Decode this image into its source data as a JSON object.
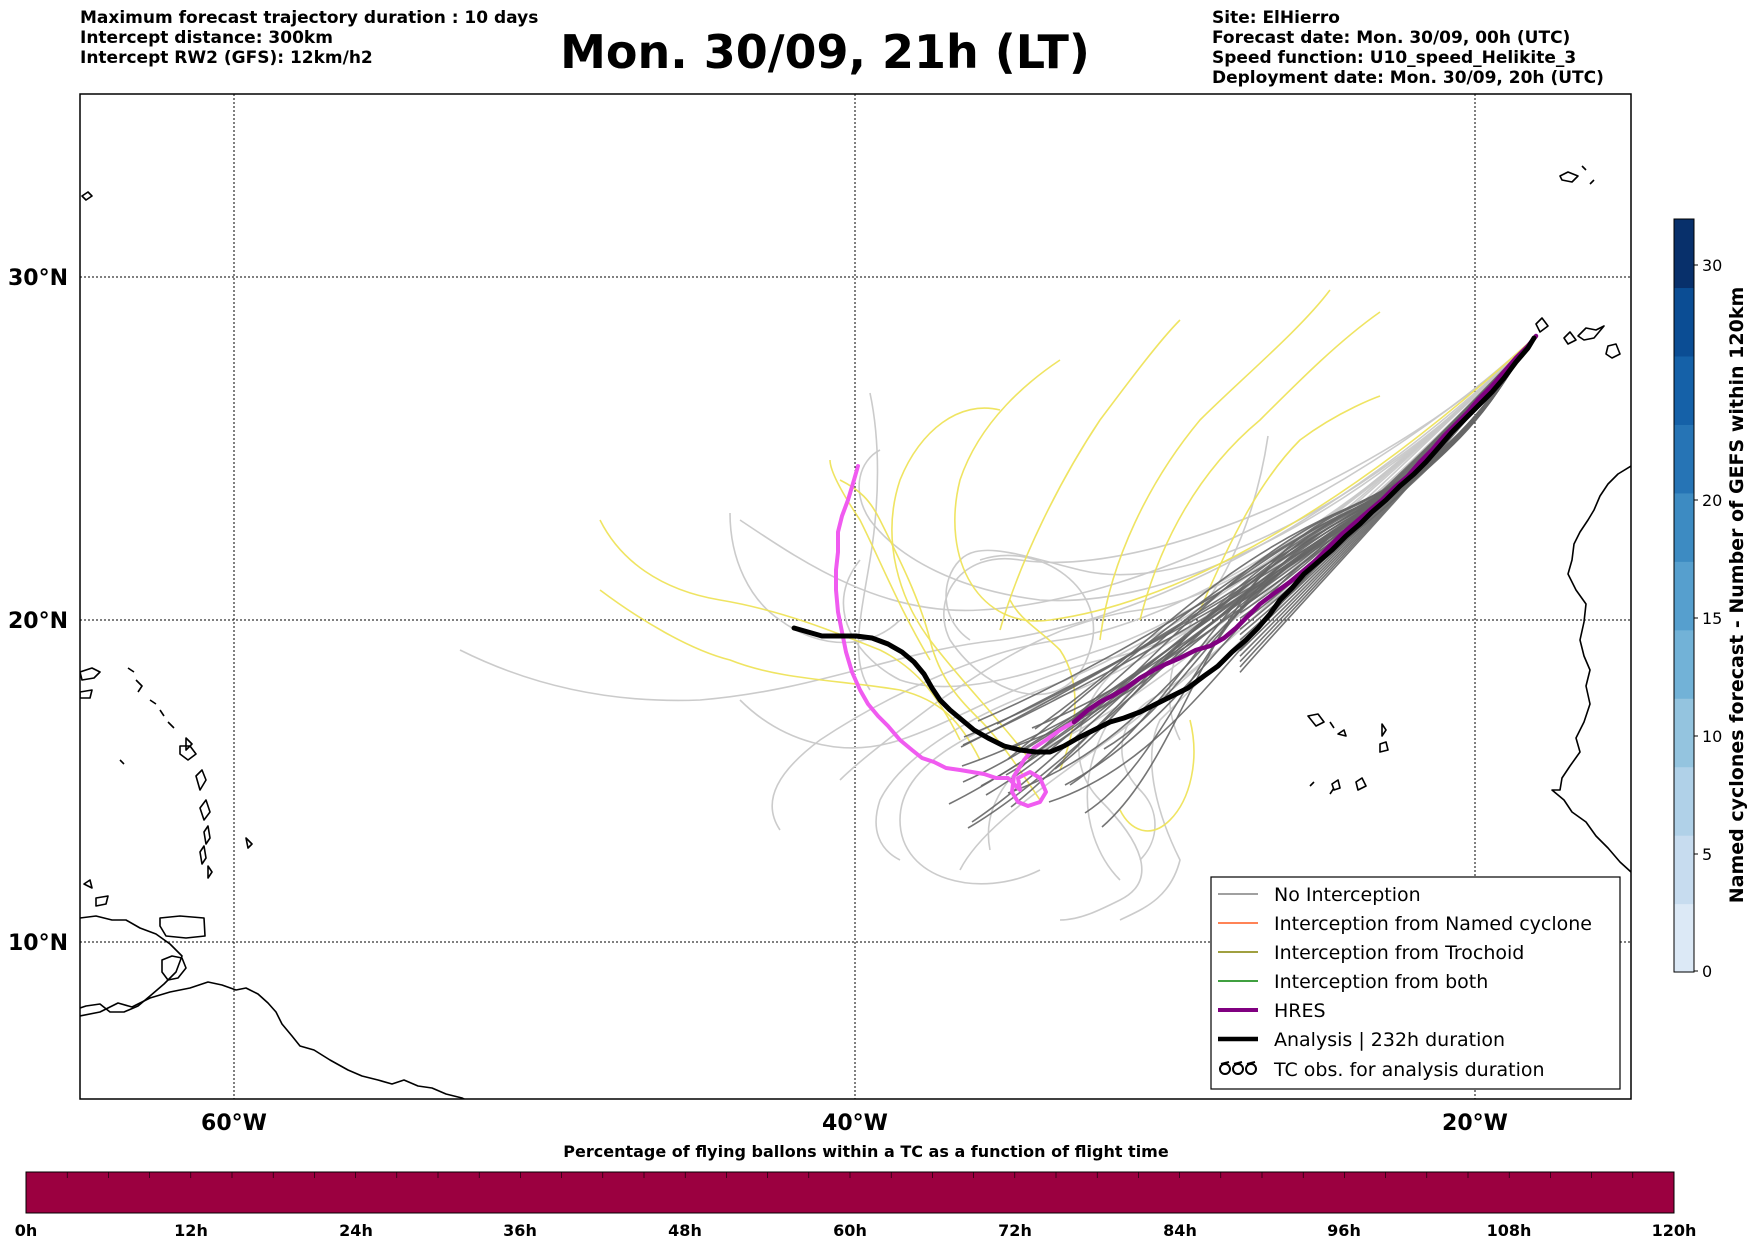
{
  "header": {
    "left_lines": [
      "Maximum forecast trajectory duration : 10 days",
      "Intercept distance: 300km",
      "Intercept RW2 (GFS):  12km/h2"
    ],
    "title": "Mon. 30/09, 21h (LT)",
    "right_lines": [
      "Site: ElHierro",
      "Forecast date: Mon. 30/09, 00h (UTC)",
      "Speed function: U10_speed_Helikite_3",
      "Deployment date: Mon. 30/09, 20h (UTC)"
    ]
  },
  "map": {
    "lat_labels": [
      "30°N",
      "20°N",
      "10°N"
    ],
    "lon_labels": [
      "60°W",
      "40°W",
      "20°W"
    ],
    "lon_range": [
      -65,
      -15
    ],
    "lat_range": [
      4.6,
      34
    ],
    "gridlines": true
  },
  "legend": {
    "placement": "lower-right",
    "items": [
      {
        "label": "No Interception",
        "color": "#808080",
        "style": "line"
      },
      {
        "label": "Interception from Named cyclone",
        "color": "#ff5a1f",
        "style": "line"
      },
      {
        "label": "Interception from Trochoid",
        "color": "#808000",
        "style": "line"
      },
      {
        "label": "Interception from both",
        "color": "#008000",
        "style": "line"
      },
      {
        "label": "HRES",
        "color": "#800080",
        "style": "thick-line"
      },
      {
        "label": "Analysis | 232h duration",
        "color": "#000000",
        "style": "thick-line"
      },
      {
        "label": "TC obs. for analysis duration",
        "color": "#000000",
        "style": "tc-symbols"
      }
    ]
  },
  "right_colorbar": {
    "label": "Named cyclones forecast - Number of GEFS within 120km",
    "ticks": [
      "0",
      "5",
      "10",
      "15",
      "20",
      "30"
    ],
    "colors": [
      "#dce9f6",
      "#c7dcef",
      "#b0d1e8",
      "#94c4df",
      "#72b2d7",
      "#569fce",
      "#3d8bc2",
      "#2674b5",
      "#1561a8",
      "#0b4d94",
      "#08306b"
    ]
  },
  "bottom_colorbar": {
    "label": "Percentage of flying ballons within a TC as a function of flight time",
    "ticks": [
      "0h",
      "12h",
      "24h",
      "36h",
      "48h",
      "60h",
      "72h",
      "84h",
      "96h",
      "108h",
      "120h"
    ],
    "fill_color": "#9b0040"
  },
  "colors": {
    "ensemble_no_interception": "#666666",
    "ensemble_light": "#c8c8c8",
    "ensemble_yellow": "#eee35a",
    "hres_forecast": "#f05bf0",
    "hres": "#800080",
    "analysis": "#000000"
  }
}
